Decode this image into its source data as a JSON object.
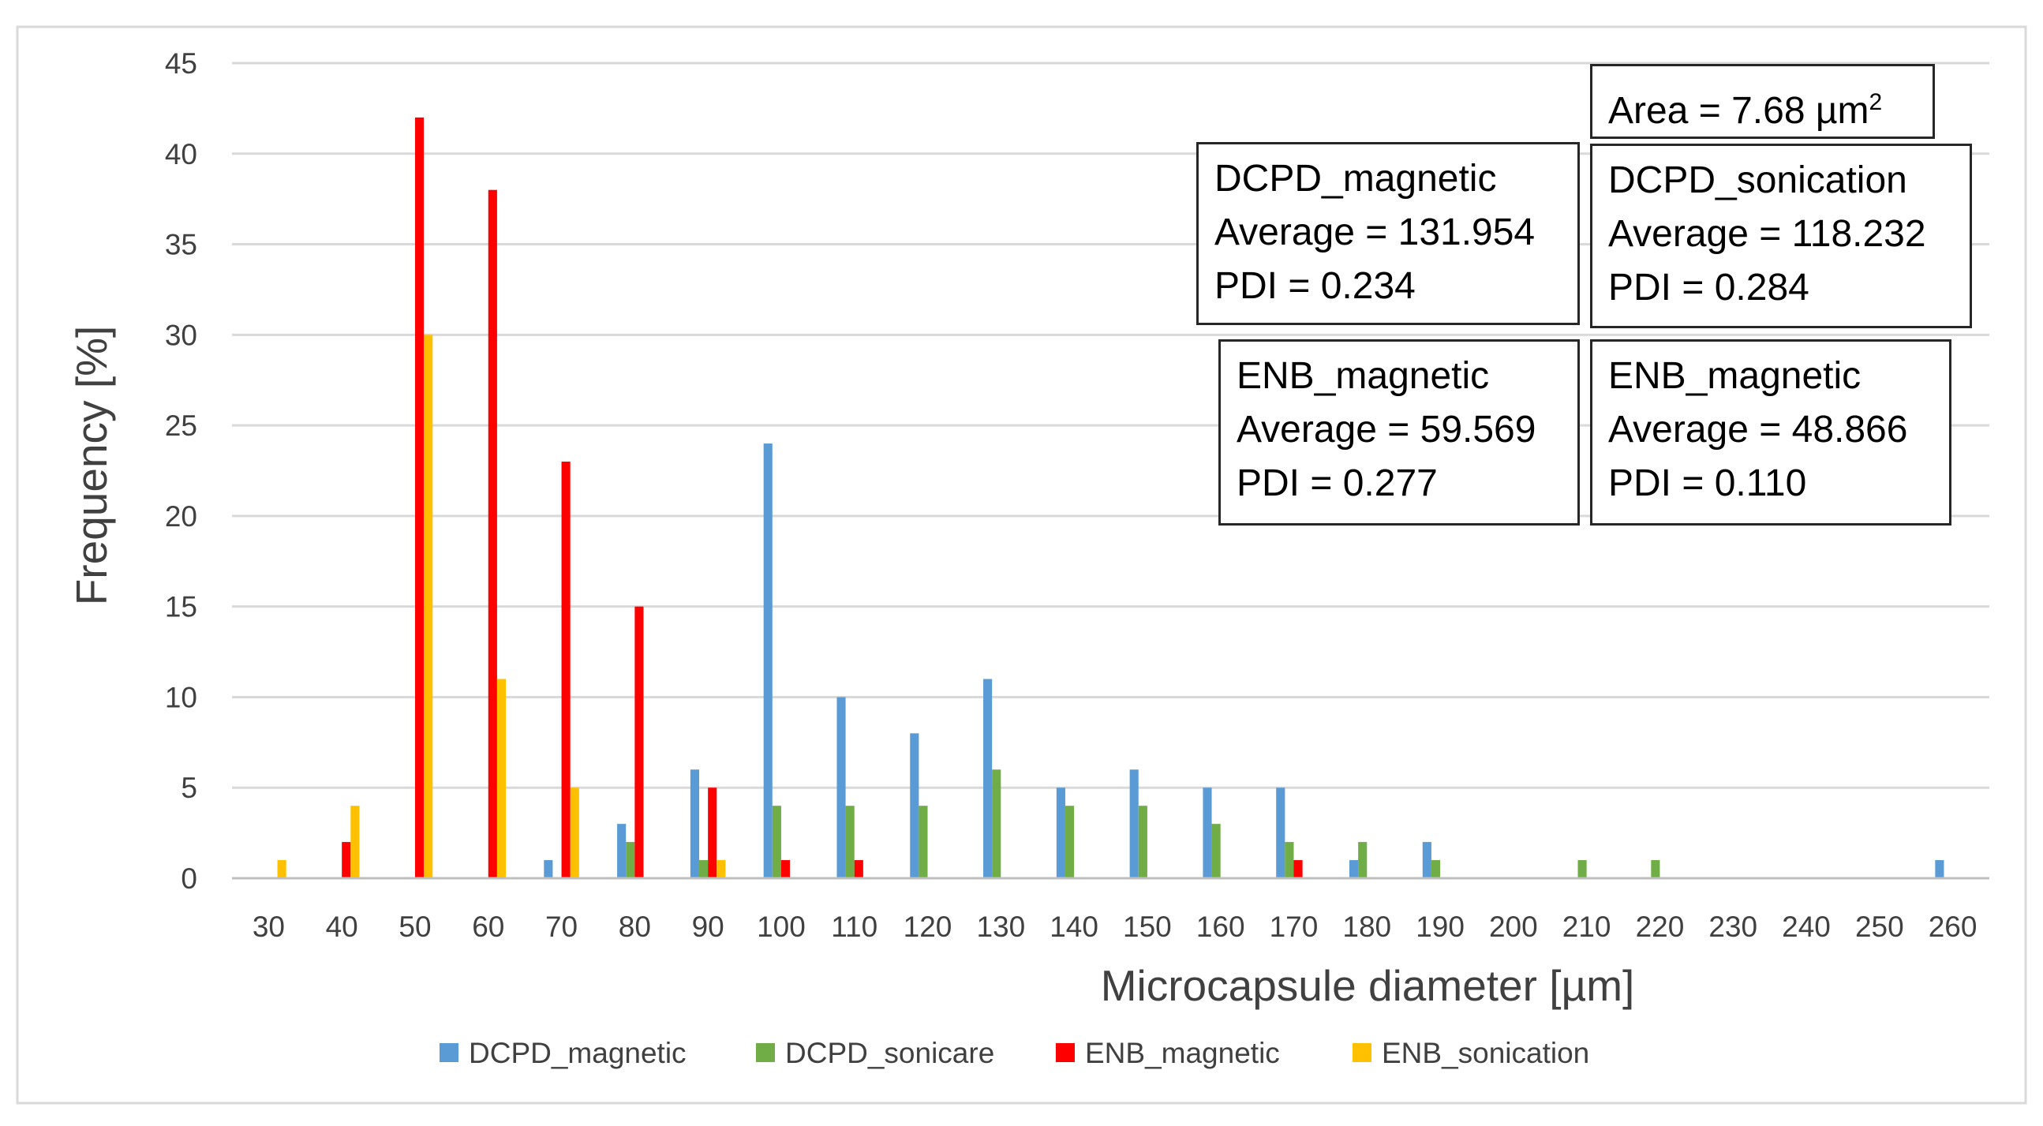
{
  "chart_data": {
    "type": "bar",
    "title": "",
    "xlabel": "Microcapsule diameter [µm]",
    "ylabel": "Frequency [%]",
    "ylim": [
      0,
      45
    ],
    "yticks": [
      "0",
      "5",
      "10",
      "15",
      "20",
      "25",
      "30",
      "35",
      "40",
      "45"
    ],
    "grid": true,
    "categories": [
      "30",
      "40",
      "50",
      "60",
      "70",
      "80",
      "90",
      "100",
      "110",
      "120",
      "130",
      "140",
      "150",
      "160",
      "170",
      "180",
      "190",
      "200",
      "210",
      "220",
      "230",
      "240",
      "250",
      "260"
    ],
    "series": [
      {
        "name": "DCPD_magnetic",
        "color": "#5B9BD5",
        "values": [
          0,
          0,
          0,
          0,
          1,
          3,
          6,
          24,
          10,
          8,
          11,
          5,
          6,
          5,
          5,
          1,
          2,
          0,
          0,
          0,
          0,
          0,
          0,
          1
        ]
      },
      {
        "name": "DCPD_sonicare",
        "color": "#70AD47",
        "values": [
          0,
          0,
          0,
          0,
          0,
          2,
          1,
          4,
          4,
          4,
          6,
          4,
          4,
          3,
          2,
          2,
          1,
          0,
          1,
          1,
          0,
          0,
          0,
          0
        ]
      },
      {
        "name": "ENB_magnetic",
        "color": "#FF0000",
        "values": [
          0,
          2,
          42,
          38,
          23,
          15,
          5,
          1,
          1,
          0,
          0,
          0,
          0,
          0,
          1,
          0,
          0,
          0,
          0,
          0,
          0,
          0,
          0,
          0
        ]
      },
      {
        "name": "ENB_sonication",
        "color": "#FFC000",
        "values": [
          1,
          4,
          30,
          11,
          5,
          0,
          1,
          0,
          0,
          0,
          0,
          0,
          0,
          0,
          0,
          0,
          0,
          0,
          0,
          0,
          0,
          0,
          0,
          0
        ]
      }
    ],
    "legend_position": "bottom"
  },
  "annotations": {
    "area": {
      "prefix": "Area = 7.68 µm",
      "sup": "2"
    },
    "dcpd_magnetic": {
      "name": "DCPD_magnetic",
      "average": "Average = 131.954",
      "pdi": "PDI = 0.234"
    },
    "dcpd_sonication": {
      "name": "DCPD_sonication",
      "average": "Average = 118.232",
      "pdi": "PDI = 0.284"
    },
    "enb_magnetic_1": {
      "name": "ENB_magnetic",
      "average": "Average = 59.569",
      "pdi": "PDI = 0.277"
    },
    "enb_magnetic_2": {
      "name": "ENB_magnetic",
      "average": "Average = 48.866",
      "pdi": "PDI = 0.110"
    }
  }
}
